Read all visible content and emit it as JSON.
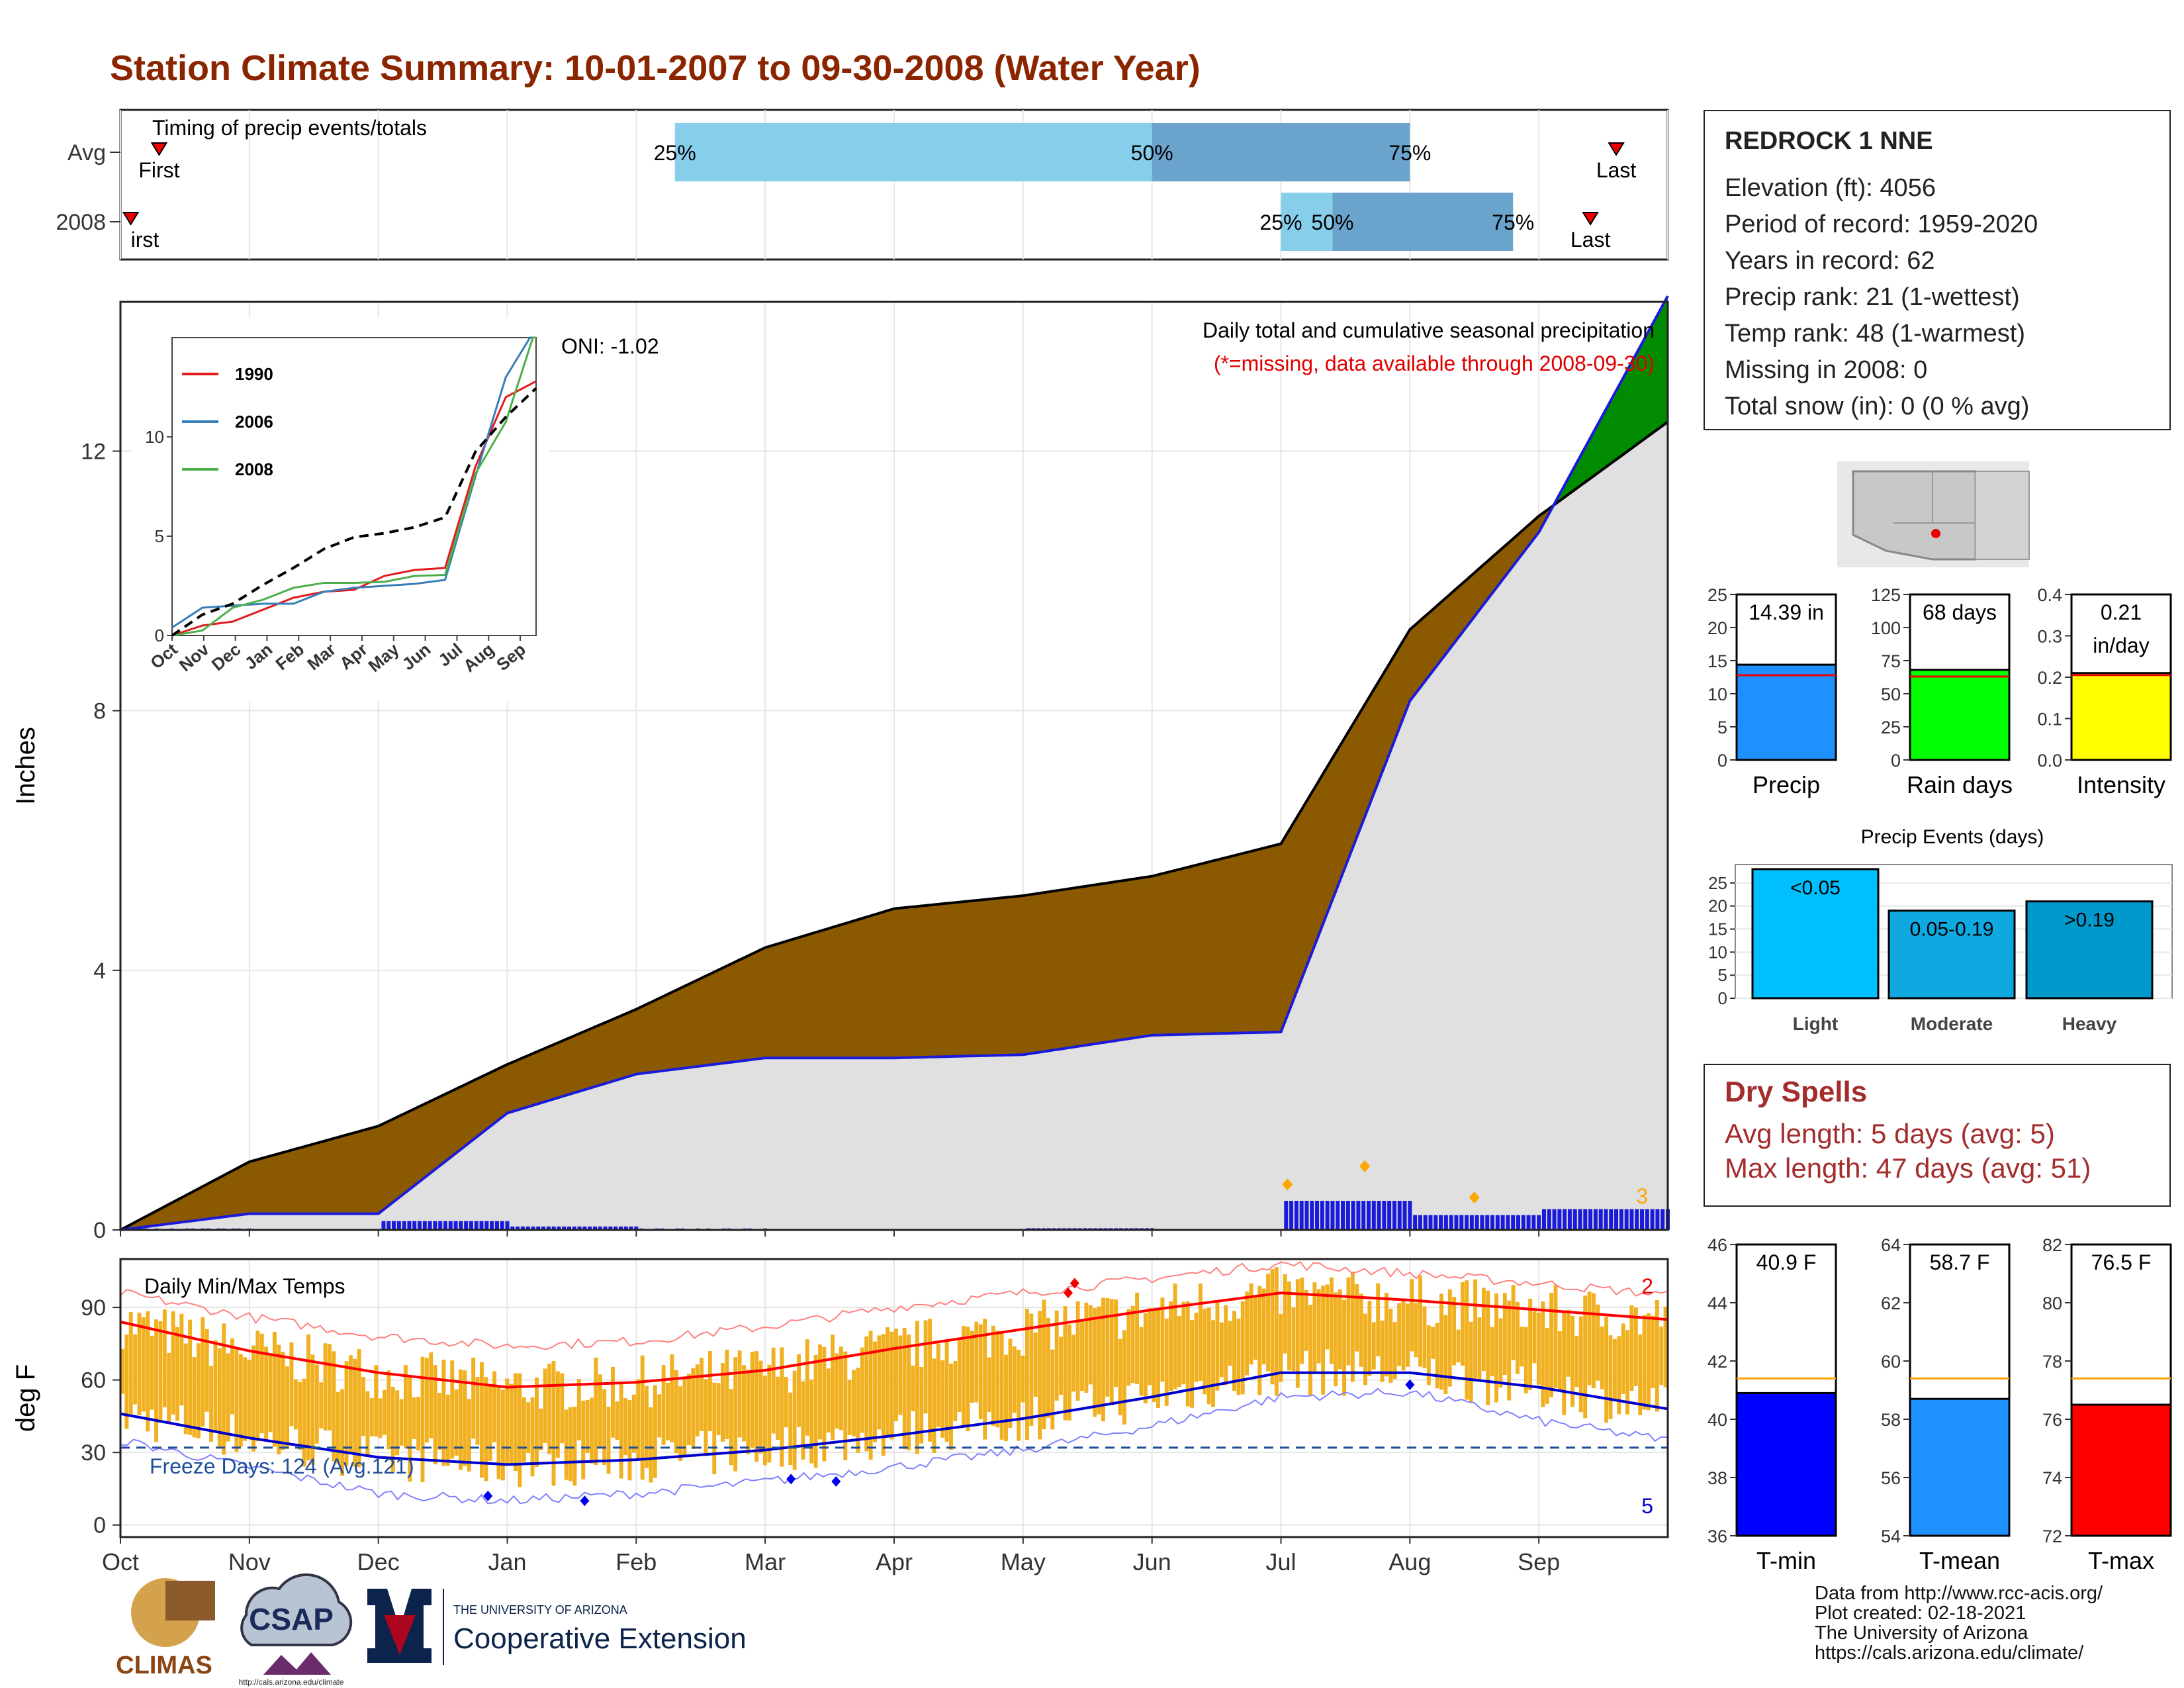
{
  "title": "Station Climate Summary: 10-01-2007 to 09-30-2008 (Water Year)",
  "timing": {
    "heading": "Timing of precip events/totals",
    "row_labels": [
      "Avg",
      "2008"
    ],
    "rows": [
      {
        "label": "Avg",
        "first_month": 0.3,
        "q25": 4.3,
        "q50": 8.0,
        "q75": 10.0,
        "last_month": 11.6,
        "first_label": "First",
        "last_label": "Last"
      },
      {
        "label": "2008",
        "first_month": 0.08,
        "q25": 9.0,
        "q50": 9.4,
        "q75": 10.8,
        "last_month": 11.4,
        "first_label": "irst",
        "last_label": "Last"
      }
    ],
    "pct_labels": [
      "25%",
      "50%",
      "75%"
    ],
    "colors": {
      "light": "#87ceeb",
      "dark": "#6aa3cc"
    }
  },
  "precip_panel": {
    "title": "Daily total and cumulative seasonal precipitation",
    "subtitle": "(*=missing, data available through 2008-09-30)",
    "oni": "ONI: -1.02",
    "ylabel": "Inches",
    "yticks": [
      0,
      4,
      8,
      12
    ],
    "count_label": "3",
    "colors": {
      "deficit": "#8b5a00",
      "surplus": "#008b00",
      "cum2008": "#1a1adb",
      "avg": "#000000",
      "bars": "#1a1adb",
      "fill": "#e0e0e0",
      "marker": "#ffa500"
    }
  },
  "inset": {
    "yticks": [
      0,
      5,
      10
    ],
    "xticks": [
      "Oct",
      "Nov",
      "Dec",
      "Jan",
      "Feb",
      "Mar",
      "Apr",
      "May",
      "Jun",
      "Jul",
      "Aug",
      "Sep"
    ],
    "legend": [
      {
        "name": "1990",
        "color": "#e31a1c"
      },
      {
        "name": "2006",
        "color": "#377eb8"
      },
      {
        "name": "2008",
        "color": "#4daf4a"
      }
    ]
  },
  "temp_panel": {
    "title": "Daily Min/Max Temps",
    "ylabel": "deg F",
    "yticks": [
      0,
      30,
      60,
      90
    ],
    "freeze_label": "Freeze Days: 124 (Avg.121)",
    "record_high_count": "2",
    "record_low_count": "5",
    "colors": {
      "bars": "#f0b020",
      "avg_max": "#ff0000",
      "avg_min": "#0000cc",
      "freeze": "#1f4e99"
    }
  },
  "months": [
    "Oct",
    "Nov",
    "Dec",
    "Jan",
    "Feb",
    "Mar",
    "Apr",
    "May",
    "Jun",
    "Jul",
    "Aug",
    "Sep"
  ],
  "station": {
    "name": "REDROCK 1 NNE",
    "lines": [
      "Elevation (ft): 4056",
      "Period of record: 1959-2020",
      "Years in record: 62",
      "Precip rank: 21 (1-wettest)",
      "Temp rank: 48 (1-warmest)",
      "Missing in 2008: 0",
      "Total snow (in): 0 (0 % avg)"
    ]
  },
  "summary_bars": [
    {
      "label": "Precip",
      "value_text": "14.39 in",
      "value": 14.39,
      "avg": 12.8,
      "ymax": 25,
      "ticks": [
        0,
        5,
        10,
        15,
        20,
        25
      ],
      "color": "#1e90ff"
    },
    {
      "label": "Rain days",
      "value_text": "68 days",
      "value": 68,
      "avg": 63,
      "ymax": 125,
      "ticks": [
        0,
        25,
        50,
        75,
        100,
        125
      ],
      "color": "#00ff00"
    },
    {
      "label": "Intensity",
      "value_text": "0.21\nin/day",
      "value": 0.21,
      "avg": 0.205,
      "ymax": 0.4,
      "ticks": [
        "0.0",
        "0.1",
        "0.2",
        "0.3",
        "0.4"
      ],
      "color": "#ffff00"
    }
  ],
  "precip_events": {
    "title": "Precip Events (days)",
    "ticks": [
      0,
      5,
      10,
      15,
      20,
      25
    ],
    "bars": [
      {
        "label": "Light",
        "value_text": "<0.05",
        "value": 28,
        "color": "#00bfff"
      },
      {
        "label": "Moderate",
        "value_text": "0.05-0.19",
        "value": 19,
        "color": "#10a8e0"
      },
      {
        "label": "Heavy",
        "value_text": ">0.19",
        "value": 21,
        "color": "#0099cc"
      }
    ]
  },
  "dry_spells": {
    "title": "Dry Spells",
    "avg_length": "Avg length: 5 days (avg: 5)",
    "max_length": "Max length: 47 days (avg: 51)"
  },
  "temp_bars": [
    {
      "label": "T-min",
      "value_text": "40.9 F",
      "value": 40.9,
      "avg": 41.4,
      "ymin": 36,
      "ymax": 46,
      "ticks": [
        36,
        38,
        40,
        42,
        44,
        46
      ],
      "color": "#0000ff"
    },
    {
      "label": "T-mean",
      "value_text": "58.7 F",
      "value": 58.7,
      "avg": 59.4,
      "ymin": 54,
      "ymax": 64,
      "ticks": [
        54,
        56,
        58,
        60,
        62,
        64
      ],
      "color": "#1e90ff"
    },
    {
      "label": "T-max",
      "value_text": "76.5 F",
      "value": 76.5,
      "avg": 77.4,
      "ymin": 72,
      "ymax": 82,
      "ticks": [
        72,
        74,
        76,
        78,
        80,
        82
      ],
      "color": "#ff0000"
    }
  ],
  "logos": {
    "climas": "CLIMAS",
    "csap": "CSAP",
    "csap_url": "http://cals.arizona.edu/climate",
    "ua_small": "THE UNIVERSITY OF ARIZONA",
    "ua_big": "Cooperative Extension"
  },
  "credits": [
    "Data from http://www.rcc-acis.org/",
    "Plot created: 02-18-2021",
    "The University of Arizona",
    "https://cals.arizona.edu/climate/"
  ],
  "chart_data": [
    {
      "type": "area",
      "title": "Daily total and cumulative seasonal precipitation",
      "ylabel": "Inches",
      "ylim": [
        0,
        14.3
      ],
      "x": [
        "Oct",
        "Nov",
        "Dec",
        "Jan",
        "Feb",
        "Mar",
        "Apr",
        "May",
        "Jun",
        "Jul",
        "Aug",
        "Sep",
        "Sep-end"
      ],
      "series": [
        {
          "name": "Avg cumulative",
          "values": [
            0.0,
            1.05,
            1.6,
            2.55,
            3.4,
            4.35,
            4.95,
            5.15,
            5.45,
            5.95,
            9.25,
            11.0,
            12.45
          ]
        },
        {
          "name": "2008 cumulative",
          "values": [
            0.0,
            0.25,
            0.25,
            1.8,
            2.4,
            2.65,
            2.65,
            2.7,
            3.0,
            3.05,
            8.15,
            10.75,
            14.39
          ]
        }
      ]
    },
    {
      "type": "line",
      "title": "Daily Min/Max Temps",
      "ylabel": "deg F",
      "ylim": [
        -5,
        110
      ],
      "x": [
        "Oct",
        "Nov",
        "Dec",
        "Jan",
        "Feb",
        "Mar",
        "Apr",
        "May",
        "Jun",
        "Jul",
        "Aug",
        "Sep",
        "Sep-end"
      ],
      "series": [
        {
          "name": "Avg max",
          "values": [
            84,
            72,
            63,
            57,
            59,
            64,
            73,
            81,
            89,
            96,
            93,
            89,
            85
          ]
        },
        {
          "name": "Avg min",
          "values": [
            46,
            36,
            28,
            25,
            27,
            31,
            37,
            44,
            53,
            63,
            63,
            57,
            48
          ]
        },
        {
          "name": "Record max",
          "values": [
            96,
            86,
            78,
            74,
            76,
            82,
            90,
            96,
            102,
            108,
            104,
            100,
            95
          ]
        },
        {
          "name": "Record min",
          "values": [
            35,
            24,
            13,
            10,
            13,
            18,
            24,
            31,
            41,
            53,
            55,
            43,
            35
          ]
        }
      ]
    },
    {
      "type": "bar",
      "title": "Precip Events (days)",
      "categories": [
        "Light",
        "Moderate",
        "Heavy"
      ],
      "values": [
        28,
        19,
        21
      ]
    },
    {
      "type": "bar",
      "categories": [
        "Precip",
        "Rain days",
        "Intensity"
      ],
      "values": [
        14.39,
        68,
        0.21
      ]
    },
    {
      "type": "bar",
      "categories": [
        "T-min",
        "T-mean",
        "T-max"
      ],
      "values": [
        40.9,
        58.7,
        76.5
      ]
    }
  ]
}
